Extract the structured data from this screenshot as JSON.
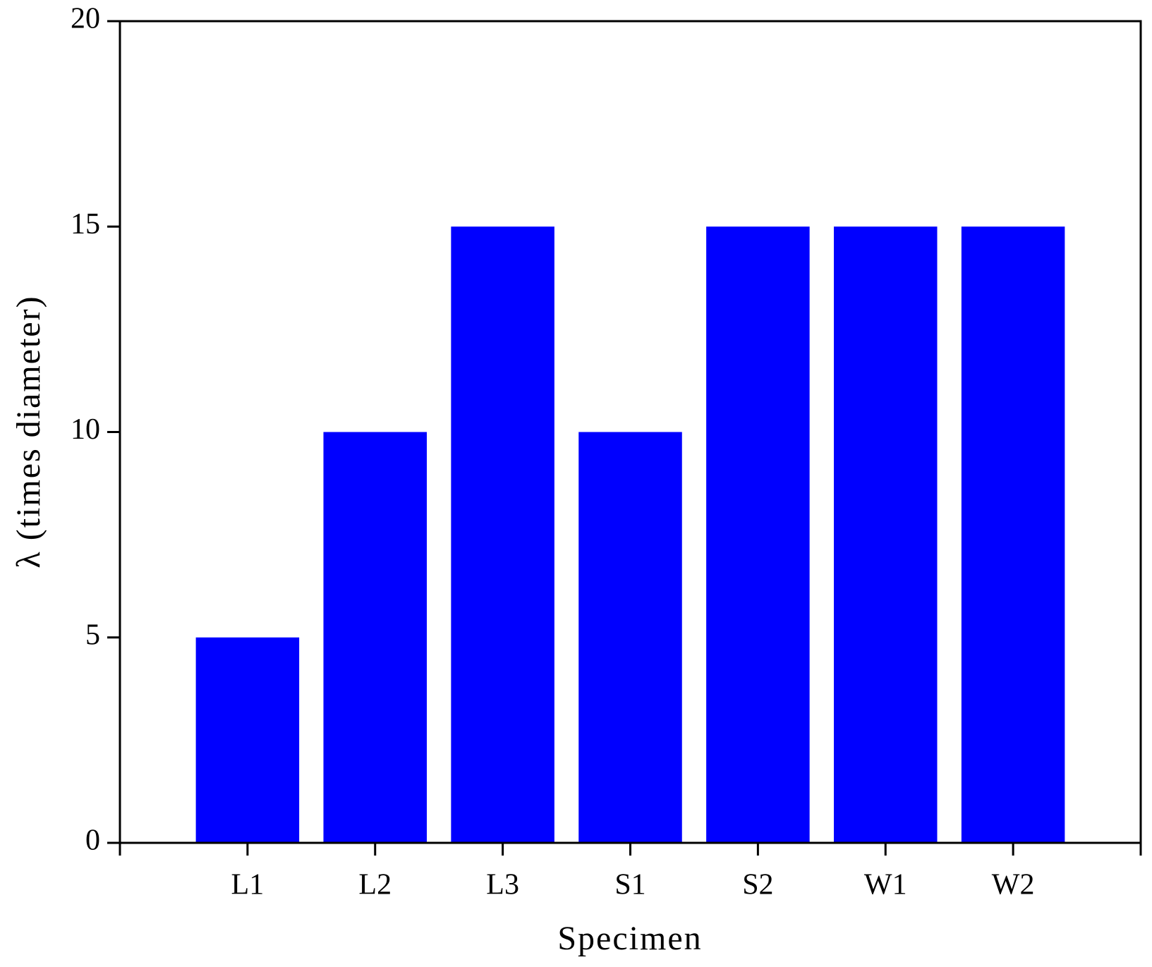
{
  "chart_data": {
    "type": "bar",
    "x_label": "Specimen",
    "y_label": "λ (times diameter)",
    "categories": [
      "L1",
      "L2",
      "L3",
      "S1",
      "S2",
      "W1",
      "W2"
    ],
    "values": [
      5,
      10,
      15,
      10,
      15,
      15,
      15
    ],
    "color": "#0000ff",
    "ylim": [
      0,
      20
    ],
    "yticks": [
      0,
      5,
      10,
      15,
      20
    ],
    "grid": false
  }
}
